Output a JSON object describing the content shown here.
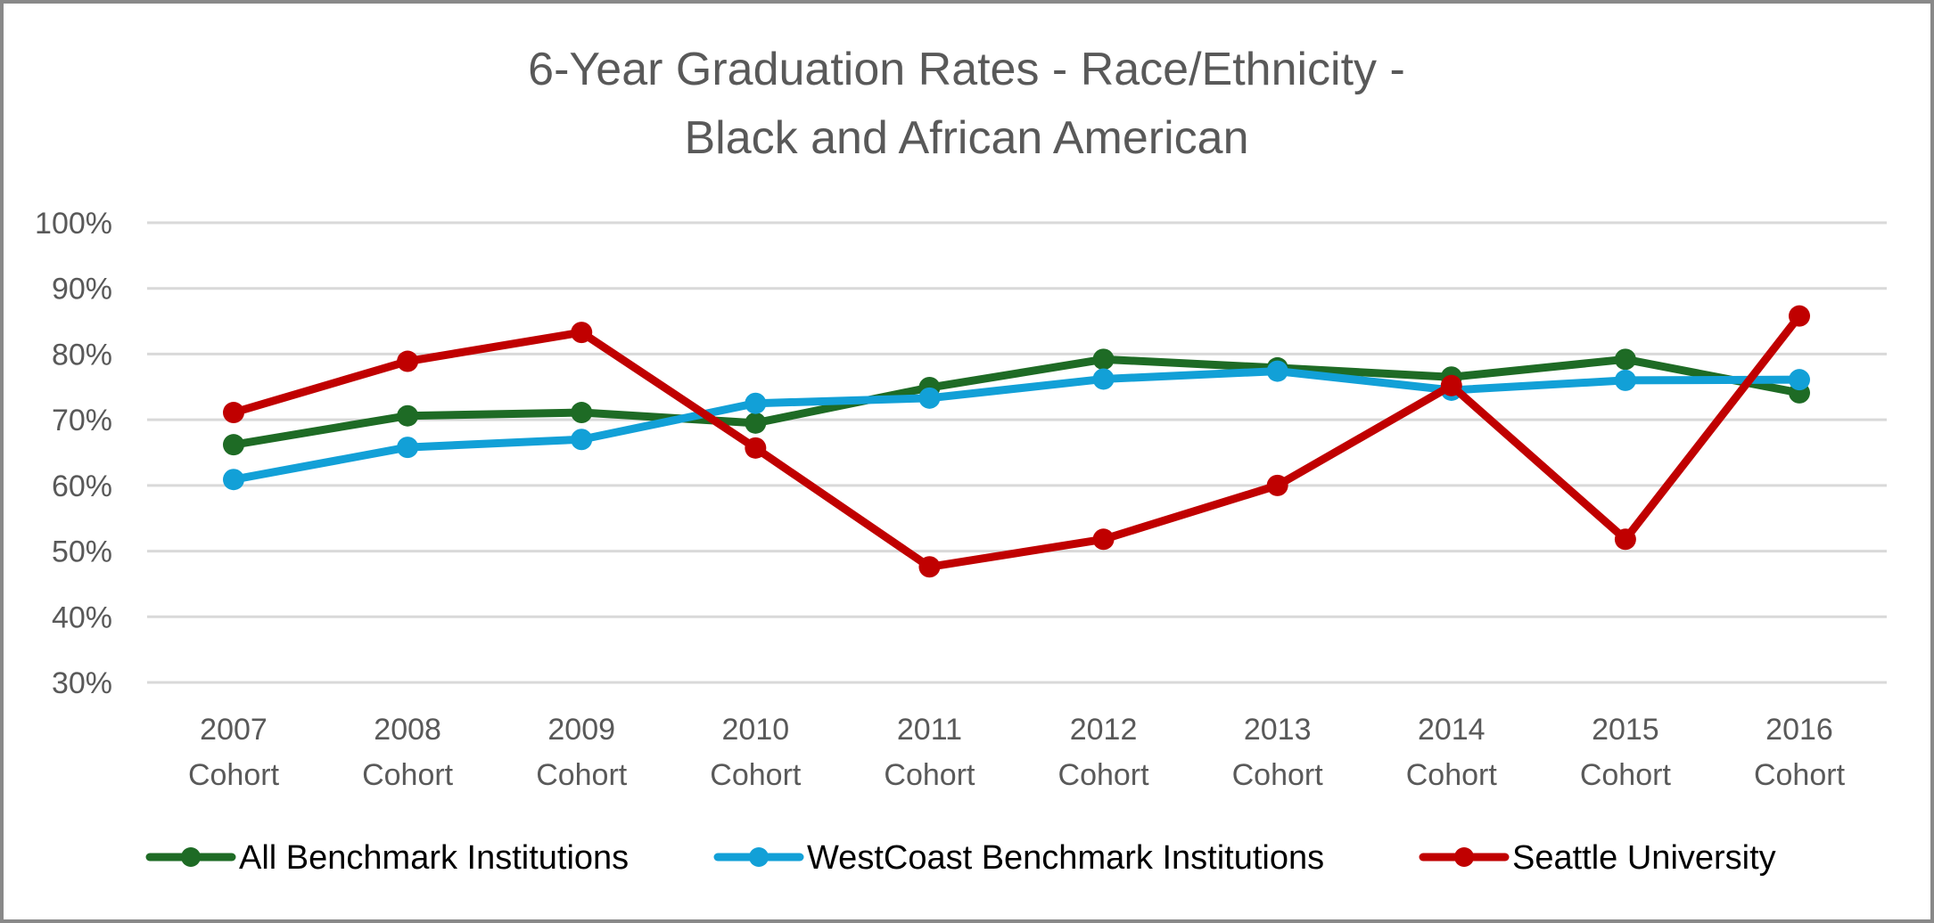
{
  "chart_data": {
    "type": "line",
    "title": [
      "6-Year Graduation Rates - Race/Ethnicity -",
      "Black and African American"
    ],
    "xlabel": "",
    "ylabel": "",
    "ylim": [
      0.3,
      1.0
    ],
    "y_ticks": [
      0.3,
      0.4,
      0.5,
      0.6,
      0.7,
      0.8,
      0.9,
      1.0
    ],
    "y_tick_labels": [
      "30%",
      "40%",
      "50%",
      "60%",
      "70%",
      "80%",
      "90%",
      "100%"
    ],
    "grid": true,
    "legend_position": "bottom",
    "categories": [
      [
        "2007",
        "Cohort"
      ],
      [
        "2008",
        "Cohort"
      ],
      [
        "2009",
        "Cohort"
      ],
      [
        "2010",
        "Cohort"
      ],
      [
        "2011",
        "Cohort"
      ],
      [
        "2012",
        "Cohort"
      ],
      [
        "2013",
        "Cohort"
      ],
      [
        "2014",
        "Cohort"
      ],
      [
        "2015",
        "Cohort"
      ],
      [
        "2016",
        "Cohort"
      ]
    ],
    "series": [
      {
        "name": "All Benchmark Institutions",
        "color": "#1e6b25",
        "values": [
          0.662,
          0.706,
          0.711,
          0.695,
          0.749,
          0.792,
          0.779,
          0.765,
          0.792,
          0.741
        ]
      },
      {
        "name": "WestCoast Benchmark Institutions",
        "color": "#12a0d7",
        "values": [
          0.609,
          0.658,
          0.67,
          0.725,
          0.733,
          0.762,
          0.774,
          0.745,
          0.76,
          0.761
        ]
      },
      {
        "name": "Seattle University",
        "color": "#c00000",
        "values": [
          0.711,
          0.789,
          0.833,
          0.657,
          0.476,
          0.518,
          0.6,
          0.752,
          0.518,
          0.858
        ]
      }
    ]
  }
}
